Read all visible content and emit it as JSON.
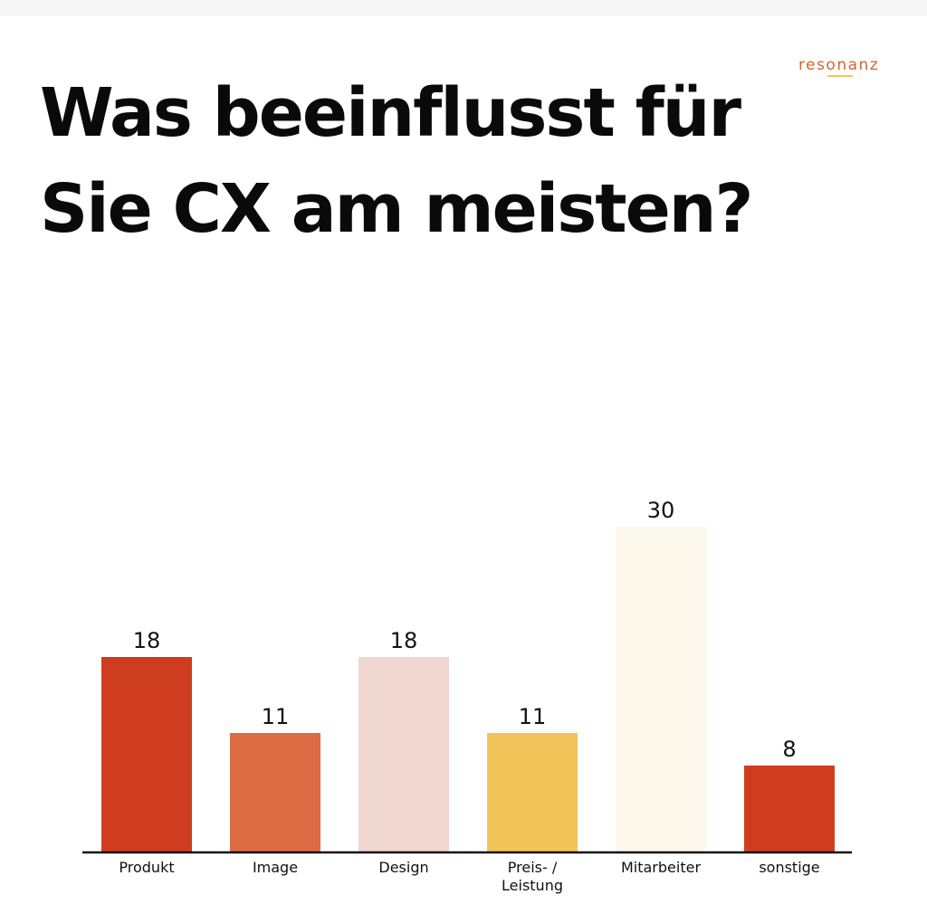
{
  "header": {
    "title": "Was beeinflusst für Sie CX am meisten?",
    "logo": "resonanz"
  },
  "colors": {
    "brand": "#d9622b",
    "logo_accent": "#f1c75a"
  },
  "chart_data": {
    "type": "bar",
    "title": "Was beeinflusst für Sie CX am meisten?",
    "xlabel": "",
    "ylabel": "",
    "categories": [
      "Produkt",
      "Image",
      "Design",
      "Preis- / Leistung",
      "Mitarbeiter",
      "sonstige"
    ],
    "category_lines": [
      [
        "Produkt"
      ],
      [
        "Image"
      ],
      [
        "Design"
      ],
      [
        "Preis- /",
        "Leistung"
      ],
      [
        "Mitarbeiter"
      ],
      [
        "sonstige"
      ]
    ],
    "values": [
      18,
      11,
      18,
      11,
      30,
      8
    ],
    "bar_colors": [
      "#cf3d20",
      "#dd6c44",
      "#efd6ce",
      "#f2c55a",
      "#fdf8ec",
      "#cf3d20"
    ],
    "ylim": [
      0,
      30
    ],
    "grid": false,
    "legend": "none",
    "data_labels": true
  }
}
